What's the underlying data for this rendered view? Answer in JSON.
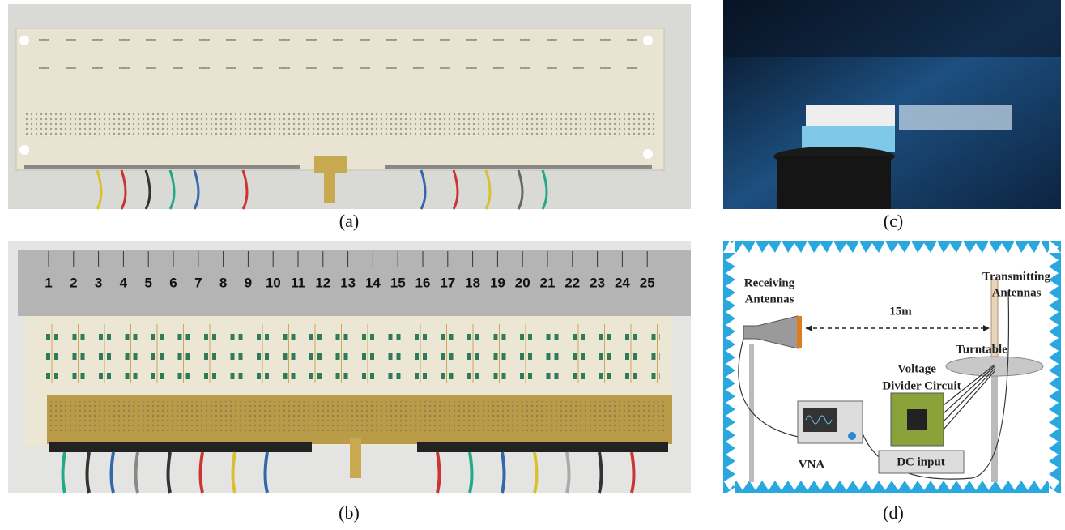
{
  "panels": {
    "a": {
      "label": "(a)"
    },
    "b": {
      "label": "(b)"
    },
    "c": {
      "label": "(c)"
    },
    "d": {
      "label": "(d)"
    }
  },
  "ruler": {
    "marks": [
      "1",
      "2",
      "3",
      "4",
      "5",
      "6",
      "7",
      "8",
      "9",
      "10",
      "11",
      "12",
      "13",
      "14",
      "15",
      "16",
      "17",
      "18",
      "19",
      "20",
      "21",
      "22",
      "23",
      "24",
      "25"
    ]
  },
  "diagram": {
    "receiving_antennas": [
      "Receiving",
      "Antennas"
    ],
    "transmitting_antennas": [
      "Transmitting",
      "Antennas"
    ],
    "distance": "15m",
    "turntable": "Turntable",
    "voltage_divider": [
      "Voltage",
      "Divider Circuit"
    ],
    "vna": "VNA",
    "dc_input": "DC input"
  }
}
